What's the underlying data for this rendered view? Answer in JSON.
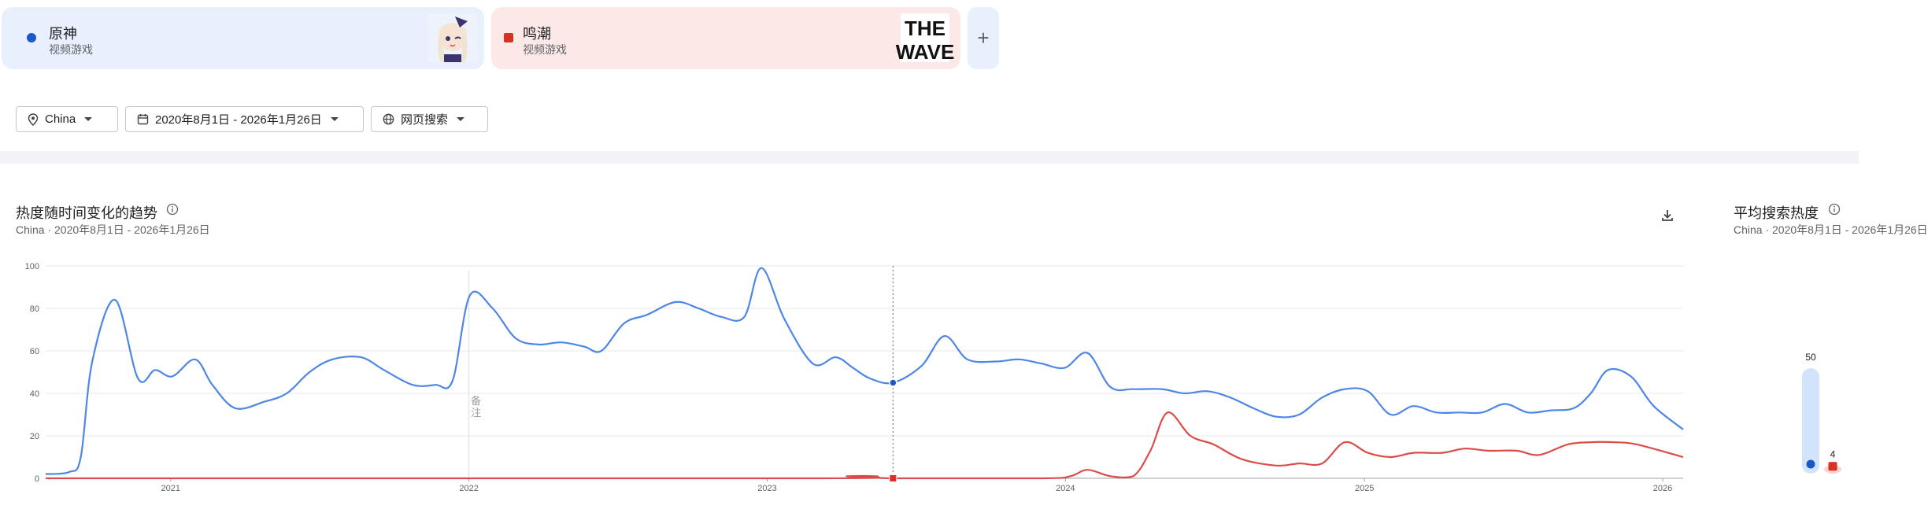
{
  "terms": [
    {
      "name": "原神",
      "category": "视频游戏",
      "color": "#1a57c9"
    },
    {
      "name": "鸣潮",
      "category": "视频游戏",
      "color": "#d93025",
      "thumb_text": "THE WAVE"
    }
  ],
  "add_label": "+",
  "filters": {
    "region": "China",
    "date_range": "2020年8月1日 - 2026年1月26日",
    "search_type": "网页搜索"
  },
  "trend": {
    "title": "热度随时间变化的趋势",
    "subtitle": "China · 2020年8月1日 - 2026年1月26日"
  },
  "average": {
    "title": "平均搜索热度",
    "subtitle": "China · 2020年8月1日 - 2026年1月26日",
    "values": [
      {
        "name": "原神",
        "value": 50,
        "color": "#1a57c9"
      },
      {
        "name": "鸣潮",
        "value": 4,
        "color": "#d93025"
      }
    ]
  },
  "chart_data": {
    "type": "line",
    "x_range": [
      "2020-08-01",
      "2026-01-26"
    ],
    "ylim": [
      0,
      100
    ],
    "y_ticks": [
      0,
      20,
      40,
      60,
      80,
      100
    ],
    "x_ticks": [
      {
        "label": "2021",
        "date": "2021-01-01"
      },
      {
        "label": "2022",
        "date": "2022-01-01"
      },
      {
        "label": "2023",
        "date": "2023-01-01"
      },
      {
        "label": "2024",
        "date": "2024-01-01"
      },
      {
        "label": "2025",
        "date": "2025-01-01"
      },
      {
        "label": "2026",
        "date": "2026-01-01"
      }
    ],
    "annotation": {
      "date": "2022-01-01",
      "text": "备注"
    },
    "hover_date": "2023-06-04",
    "grid": true,
    "series": [
      {
        "name": "原神",
        "color": "#4e86e6",
        "points": [
          [
            "2020-08-01",
            2
          ],
          [
            "2020-08-30",
            3
          ],
          [
            "2020-09-13",
            10
          ],
          [
            "2020-09-27",
            55
          ],
          [
            "2020-10-25",
            84
          ],
          [
            "2020-11-22",
            47
          ],
          [
            "2020-12-13",
            51
          ],
          [
            "2021-01-03",
            48
          ],
          [
            "2021-01-31",
            56
          ],
          [
            "2021-02-21",
            44
          ],
          [
            "2021-03-21",
            33
          ],
          [
            "2021-04-25",
            36
          ],
          [
            "2021-05-23",
            40
          ],
          [
            "2021-06-20",
            50
          ],
          [
            "2021-07-18",
            56
          ],
          [
            "2021-08-22",
            57
          ],
          [
            "2021-09-19",
            51
          ],
          [
            "2021-10-24",
            44
          ],
          [
            "2021-11-21",
            44
          ],
          [
            "2021-12-12",
            46
          ],
          [
            "2022-01-02",
            86
          ],
          [
            "2022-01-30",
            80
          ],
          [
            "2022-02-27",
            66
          ],
          [
            "2022-03-27",
            63
          ],
          [
            "2022-04-24",
            64
          ],
          [
            "2022-05-22",
            62
          ],
          [
            "2022-06-12",
            60
          ],
          [
            "2022-07-10",
            73
          ],
          [
            "2022-08-07",
            77
          ],
          [
            "2022-09-11",
            83
          ],
          [
            "2022-10-09",
            80
          ],
          [
            "2022-11-06",
            76
          ],
          [
            "2022-12-04",
            76
          ],
          [
            "2022-12-25",
            99
          ],
          [
            "2023-01-22",
            75
          ],
          [
            "2023-02-26",
            54
          ],
          [
            "2023-03-26",
            57
          ],
          [
            "2023-04-16",
            52
          ],
          [
            "2023-05-07",
            47
          ],
          [
            "2023-06-04",
            45
          ],
          [
            "2023-07-09",
            53
          ],
          [
            "2023-08-06",
            67
          ],
          [
            "2023-09-03",
            56
          ],
          [
            "2023-10-08",
            55
          ],
          [
            "2023-11-05",
            56
          ],
          [
            "2023-12-03",
            54
          ],
          [
            "2023-12-31",
            52
          ],
          [
            "2024-01-28",
            59
          ],
          [
            "2024-02-25",
            43
          ],
          [
            "2024-03-24",
            42
          ],
          [
            "2024-04-28",
            42
          ],
          [
            "2024-05-26",
            40
          ],
          [
            "2024-06-23",
            41
          ],
          [
            "2024-07-21",
            38
          ],
          [
            "2024-08-18",
            33
          ],
          [
            "2024-09-15",
            29
          ],
          [
            "2024-10-13",
            30
          ],
          [
            "2024-11-10",
            38
          ],
          [
            "2024-12-08",
            42
          ],
          [
            "2025-01-05",
            41
          ],
          [
            "2025-02-02",
            30
          ],
          [
            "2025-03-02",
            34
          ],
          [
            "2025-03-30",
            31
          ],
          [
            "2025-04-27",
            31
          ],
          [
            "2025-05-25",
            31
          ],
          [
            "2025-06-22",
            35
          ],
          [
            "2025-07-20",
            31
          ],
          [
            "2025-08-17",
            32
          ],
          [
            "2025-09-14",
            33
          ],
          [
            "2025-10-05",
            40
          ],
          [
            "2025-10-26",
            51
          ],
          [
            "2025-11-23",
            48
          ],
          [
            "2025-12-21",
            34
          ],
          [
            "2026-01-26",
            23
          ]
        ]
      },
      {
        "name": "鸣潮",
        "color": "#db4c48",
        "points": [
          [
            "2020-08-01",
            0
          ],
          [
            "2023-02-26",
            0
          ],
          [
            "2023-04-09",
            1
          ],
          [
            "2023-05-14",
            1
          ],
          [
            "2023-06-04",
            0
          ],
          [
            "2023-12-03",
            0
          ],
          [
            "2024-01-07",
            1
          ],
          [
            "2024-01-28",
            4
          ],
          [
            "2024-02-25",
            1
          ],
          [
            "2024-03-24",
            1
          ],
          [
            "2024-04-14",
            13
          ],
          [
            "2024-05-05",
            31
          ],
          [
            "2024-06-02",
            20
          ],
          [
            "2024-06-30",
            16
          ],
          [
            "2024-08-04",
            9
          ],
          [
            "2024-09-15",
            6
          ],
          [
            "2024-10-13",
            7
          ],
          [
            "2024-11-10",
            7
          ],
          [
            "2024-12-08",
            17
          ],
          [
            "2025-01-05",
            12
          ],
          [
            "2025-02-02",
            10
          ],
          [
            "2025-03-02",
            12
          ],
          [
            "2025-04-06",
            12
          ],
          [
            "2025-05-04",
            14
          ],
          [
            "2025-06-01",
            13
          ],
          [
            "2025-07-06",
            13
          ],
          [
            "2025-08-03",
            11
          ],
          [
            "2025-09-07",
            16
          ],
          [
            "2025-10-05",
            17
          ],
          [
            "2025-11-02",
            17
          ],
          [
            "2025-11-30",
            16
          ],
          [
            "2026-01-26",
            10
          ]
        ]
      }
    ]
  }
}
